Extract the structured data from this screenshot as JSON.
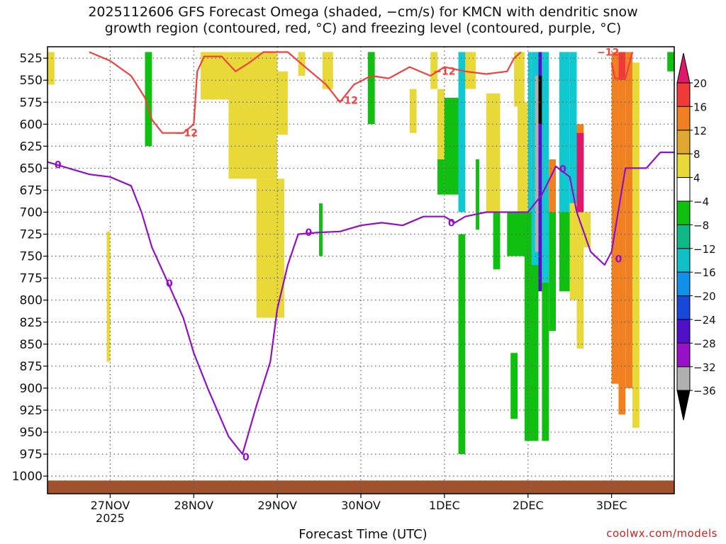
{
  "header": {
    "title_line1": "2025112606 GFS Forecast Omega (shaded, −cm/s) for KMCN with dendritic snow",
    "title_line2": "growth region (contoured, red, °C) and freezing level (contoured, purple, °C)"
  },
  "footer": {
    "xlabel": "Forecast Time (UTC)",
    "credit": "coolwx.com/models"
  },
  "colors": {
    "dgz_contour": "#f04040",
    "freezing_contour": "#9010c8",
    "terrain": "#a0522d",
    "grid": "#606060"
  },
  "chart_data": {
    "type": "heatmap",
    "variable": "Omega (shaded, −cm/s)",
    "y_axis": {
      "unit": "hPa",
      "reversed": true,
      "ticks": [
        525,
        550,
        575,
        600,
        625,
        650,
        675,
        700,
        725,
        750,
        775,
        800,
        825,
        850,
        875,
        900,
        925,
        950,
        975,
        1000
      ],
      "range": [
        512,
        1020
      ]
    },
    "x_axis": {
      "range": [
        "2025-11-26 06Z",
        "2025-12-03 18Z"
      ],
      "ticks": [
        {
          "time": "2025-11-27 00Z",
          "label": "27NOV",
          "sub": "2025"
        },
        {
          "time": "2025-11-28 00Z",
          "label": "28NOV",
          "sub": ""
        },
        {
          "time": "2025-11-29 00Z",
          "label": "29NOV",
          "sub": ""
        },
        {
          "time": "2025-11-30 00Z",
          "label": "30NOV",
          "sub": ""
        },
        {
          "time": "2025-12-01 00Z",
          "label": "1DEC",
          "sub": ""
        },
        {
          "time": "2025-12-02 00Z",
          "label": "2DEC",
          "sub": ""
        },
        {
          "time": "2025-12-03 00Z",
          "label": "3DEC",
          "sub": ""
        }
      ]
    },
    "grid": true,
    "colorbar": {
      "levels": [
        20,
        16,
        12,
        8,
        4,
        -4,
        -8,
        -12,
        -16,
        -20,
        -24,
        -28,
        -32,
        -36
      ],
      "labels": [
        "20",
        "16",
        "12",
        "8",
        "4",
        "−4",
        "−8",
        "−12",
        "−16",
        "−20",
        "−24",
        "−28",
        "−32",
        "−36"
      ],
      "colors": [
        "#e0186a",
        "#f03a3a",
        "#f08020",
        "#e0a830",
        "#e8d838",
        "#ffffff",
        "#10c010",
        "#10b888",
        "#10c0c8",
        "#1090e8",
        "#1848d8",
        "#5010c8",
        "#9810c8",
        "#b0b0b0",
        "#000000"
      ]
    },
    "shaded_regions": [
      {
        "t": [
          "2025-11-26 06Z",
          "2025-11-26 08Z"
        ],
        "p": [
          518,
          555
        ],
        "color": "#e8d838"
      },
      {
        "t": [
          "2025-11-26 23Z",
          "2025-11-27 00Z"
        ],
        "p": [
          722,
          870
        ],
        "color": "#e8d838"
      },
      {
        "t": [
          "2025-11-27 10Z",
          "2025-11-27 12Z"
        ],
        "p": [
          518,
          625
        ],
        "color": "#10c010"
      },
      {
        "t": [
          "2025-11-28 02Z",
          "2025-11-28 10Z"
        ],
        "p": [
          518,
          572
        ],
        "color": "#e8d838"
      },
      {
        "t": [
          "2025-11-28 10Z",
          "2025-11-29 00Z"
        ],
        "p": [
          518,
          662
        ],
        "color": "#e8d838"
      },
      {
        "t": [
          "2025-11-29 00Z",
          "2025-11-29 03Z"
        ],
        "p": [
          540,
          612
        ],
        "color": "#e8d838"
      },
      {
        "t": [
          "2025-11-28 18Z",
          "2025-11-29 02Z"
        ],
        "p": [
          662,
          820
        ],
        "color": "#e8d838"
      },
      {
        "t": [
          "2025-11-29 06Z",
          "2025-11-29 08Z"
        ],
        "p": [
          518,
          545
        ],
        "color": "#e8d838"
      },
      {
        "t": [
          "2025-11-29 13Z",
          "2025-11-29 16Z"
        ],
        "p": [
          518,
          560
        ],
        "color": "#e8d838"
      },
      {
        "t": [
          "2025-11-29 12Z",
          "2025-11-29 13Z"
        ],
        "p": [
          690,
          750
        ],
        "color": "#10c010"
      },
      {
        "t": [
          "2025-11-30 02Z",
          "2025-11-30 04Z"
        ],
        "p": [
          518,
          600
        ],
        "color": "#10c010"
      },
      {
        "t": [
          "2025-11-30 14Z",
          "2025-11-30 16Z"
        ],
        "p": [
          560,
          610
        ],
        "color": "#e8d838"
      },
      {
        "t": [
          "2025-11-30 20Z",
          "2025-11-30 22Z"
        ],
        "p": [
          518,
          560
        ],
        "color": "#e8d838"
      },
      {
        "t": [
          "2025-11-30 22Z",
          "2025-12-01 00Z"
        ],
        "p": [
          565,
          680
        ],
        "color": "#10c010"
      },
      {
        "t": [
          "2025-11-30 22Z",
          "2025-12-01 00Z"
        ],
        "p": [
          560,
          640
        ],
        "color": "#e8d838"
      },
      {
        "t": [
          "2025-12-01 00Z",
          "2025-12-01 04Z"
        ],
        "p": [
          570,
          680
        ],
        "color": "#10c010"
      },
      {
        "t": [
          "2025-12-01 04Z",
          "2025-12-01 06Z"
        ],
        "p": [
          518,
          700
        ],
        "color": "#10c8d0"
      },
      {
        "t": [
          "2025-12-01 06Z",
          "2025-12-01 09Z"
        ],
        "p": [
          518,
          560
        ],
        "color": "#e8d838"
      },
      {
        "t": [
          "2025-12-01 09Z",
          "2025-12-01 10Z"
        ],
        "p": [
          640,
          720
        ],
        "color": "#10c010"
      },
      {
        "t": [
          "2025-12-01 04Z",
          "2025-12-01 06Z"
        ],
        "p": [
          725,
          975
        ],
        "color": "#10c010"
      },
      {
        "t": [
          "2025-12-01 12Z",
          "2025-12-01 16Z"
        ],
        "p": [
          565,
          700
        ],
        "color": "#e8d838"
      },
      {
        "t": [
          "2025-12-01 14Z",
          "2025-12-01 16Z"
        ],
        "p": [
          700,
          765
        ],
        "color": "#10c010"
      },
      {
        "t": [
          "2025-12-01 18Z",
          "2025-12-02 00Z"
        ],
        "p": [
          700,
          750
        ],
        "color": "#10c010"
      },
      {
        "t": [
          "2025-12-01 19Z",
          "2025-12-01 21Z"
        ],
        "p": [
          860,
          935
        ],
        "color": "#10c010"
      },
      {
        "t": [
          "2025-12-01 20Z",
          "2025-12-01 23Z"
        ],
        "p": [
          518,
          580
        ],
        "color": "#e8d838"
      },
      {
        "t": [
          "2025-12-01 21Z",
          "2025-12-02 00Z"
        ],
        "p": [
          575,
          700
        ],
        "color": "#e8d838"
      },
      {
        "t": [
          "2025-12-01 23Z",
          "2025-12-02 03Z"
        ],
        "p": [
          700,
          960
        ],
        "color": "#10c010"
      },
      {
        "t": [
          "2025-12-02 00Z",
          "2025-12-02 01Z"
        ],
        "p": [
          518,
          700
        ],
        "color": "#10c8d0"
      },
      {
        "t": [
          "2025-12-02 01Z",
          "2025-12-02 03Z"
        ],
        "p": [
          518,
          760
        ],
        "color": "#10c8d0"
      },
      {
        "t": [
          "2025-12-02 03Z",
          "2025-12-02 04Z"
        ],
        "p": [
          518,
          790
        ],
        "color": "#5010c8"
      },
      {
        "t": [
          "2025-12-02 03Z",
          "2025-12-02 04Z"
        ],
        "p": [
          545,
          600
        ],
        "color": "#000000"
      },
      {
        "t": [
          "2025-12-02 02Z",
          "2025-12-02 03Z"
        ],
        "p": [
          545,
          700
        ],
        "color": "#b0b0b0"
      },
      {
        "t": [
          "2025-12-02 02Z",
          "2025-12-02 03Z"
        ],
        "p": [
          700,
          745
        ],
        "color": "#b0b0b0"
      },
      {
        "t": [
          "2025-12-02 04Z",
          "2025-12-02 06Z"
        ],
        "p": [
          518,
          780
        ],
        "color": "#10c8d0"
      },
      {
        "t": [
          "2025-12-02 04Z",
          "2025-12-02 06Z"
        ],
        "p": [
          780,
          960
        ],
        "color": "#10c010"
      },
      {
        "t": [
          "2025-12-02 06Z",
          "2025-12-02 08Z"
        ],
        "p": [
          640,
          700
        ],
        "color": "#f08020"
      },
      {
        "t": [
          "2025-12-02 06Z",
          "2025-12-02 08Z"
        ],
        "p": [
          700,
          835
        ],
        "color": "#10c010"
      },
      {
        "t": [
          "2025-12-02 09Z",
          "2025-12-02 12Z"
        ],
        "p": [
          518,
          700
        ],
        "color": "#10c8d0"
      },
      {
        "t": [
          "2025-12-02 09Z",
          "2025-12-02 12Z"
        ],
        "p": [
          700,
          790
        ],
        "color": "#10c010"
      },
      {
        "t": [
          "2025-12-02 12Z",
          "2025-12-02 14Z"
        ],
        "p": [
          518,
          690
        ],
        "color": "#10c8d0"
      },
      {
        "t": [
          "2025-12-02 12Z",
          "2025-12-02 14Z"
        ],
        "p": [
          690,
          800
        ],
        "color": "#e8d838"
      },
      {
        "t": [
          "2025-12-02 14Z",
          "2025-12-02 16Z"
        ],
        "p": [
          600,
          655
        ],
        "color": "#f08020"
      },
      {
        "t": [
          "2025-12-02 14Z",
          "2025-12-02 16Z"
        ],
        "p": [
          610,
          700
        ],
        "color": "#e0186a"
      },
      {
        "t": [
          "2025-12-02 14Z",
          "2025-12-02 16Z"
        ],
        "p": [
          700,
          855
        ],
        "color": "#e8d838"
      },
      {
        "t": [
          "2025-12-02 16Z",
          "2025-12-02 18Z"
        ],
        "p": [
          700,
          740
        ],
        "color": "#e8d838"
      },
      {
        "t": [
          "2025-12-03 00Z",
          "2025-12-03 02Z"
        ],
        "p": [
          518,
          895
        ],
        "color": "#f08020"
      },
      {
        "t": [
          "2025-12-03 02Z",
          "2025-12-03 04Z"
        ],
        "p": [
          518,
          550
        ],
        "color": "#f03a3a"
      },
      {
        "t": [
          "2025-12-03 02Z",
          "2025-12-03 04Z"
        ],
        "p": [
          550,
          930
        ],
        "color": "#f08020"
      },
      {
        "t": [
          "2025-12-03 04Z",
          "2025-12-03 06Z"
        ],
        "p": [
          518,
          900
        ],
        "color": "#f08020"
      },
      {
        "t": [
          "2025-12-03 06Z",
          "2025-12-03 08Z"
        ],
        "p": [
          530,
          945
        ],
        "color": "#e8d838"
      },
      {
        "t": [
          "2025-12-03 16Z",
          "2025-12-03 18Z"
        ],
        "p": [
          518,
          540
        ],
        "color": "#10c010"
      }
    ],
    "dgz_contour_label": "−12",
    "dgz_contour_points": [
      [
        "2025-11-26 18Z",
        518
      ],
      [
        "2025-11-27 00Z",
        528
      ],
      [
        "2025-11-27 06Z",
        545
      ],
      [
        "2025-11-27 10Z",
        570
      ],
      [
        "2025-11-27 12Z",
        595
      ],
      [
        "2025-11-27 15Z",
        610
      ],
      [
        "2025-11-27 21Z",
        610
      ],
      [
        "2025-11-28 00Z",
        600
      ],
      [
        "2025-11-28 01Z",
        540
      ],
      [
        "2025-11-28 03Z",
        523
      ],
      [
        "2025-11-28 08Z",
        523
      ],
      [
        "2025-11-28 12Z",
        540
      ],
      [
        "2025-11-28 16Z",
        530
      ],
      [
        "2025-11-28 20Z",
        518
      ],
      [
        "2025-11-29 03Z",
        518
      ],
      [
        "2025-11-29 08Z",
        535
      ],
      [
        "2025-11-29 14Z",
        555
      ],
      [
        "2025-11-29 18Z",
        575
      ],
      [
        "2025-11-29 22Z",
        555
      ],
      [
        "2025-11-30 03Z",
        545
      ],
      [
        "2025-11-30 08Z",
        548
      ],
      [
        "2025-11-30 14Z",
        535
      ],
      [
        "2025-11-30 20Z",
        545
      ],
      [
        "2025-12-01 00Z",
        535
      ],
      [
        "2025-12-01 06Z",
        540
      ],
      [
        "2025-12-01 12Z",
        543
      ],
      [
        "2025-12-01 18Z",
        540
      ],
      [
        "2025-12-01 20Z",
        525
      ],
      [
        "2025-12-01 22Z",
        518
      ]
    ],
    "dgz_contour2_points": [
      [
        "2025-12-03 00Z",
        530
      ],
      [
        "2025-12-03 01Z",
        548
      ],
      [
        "2025-12-03 04Z",
        548
      ],
      [
        "2025-12-03 06Z",
        518
      ]
    ],
    "freezing_contour_label": "0",
    "freezing_contour_points": [
      [
        "2025-11-26 06Z",
        643
      ],
      [
        "2025-11-26 12Z",
        650
      ],
      [
        "2025-11-26 18Z",
        657
      ],
      [
        "2025-11-27 00Z",
        660
      ],
      [
        "2025-11-27 06Z",
        670
      ],
      [
        "2025-11-27 09Z",
        700
      ],
      [
        "2025-11-27 12Z",
        740
      ],
      [
        "2025-11-27 16Z",
        775
      ],
      [
        "2025-11-27 21Z",
        820
      ],
      [
        "2025-11-28 00Z",
        860
      ],
      [
        "2025-11-28 04Z",
        900
      ],
      [
        "2025-11-28 10Z",
        955
      ],
      [
        "2025-11-28 14Z",
        975
      ],
      [
        "2025-11-28 18Z",
        920
      ],
      [
        "2025-11-28 22Z",
        870
      ],
      [
        "2025-11-29 00Z",
        810
      ],
      [
        "2025-11-29 03Z",
        760
      ],
      [
        "2025-11-29 06Z",
        725
      ],
      [
        "2025-11-29 12Z",
        723
      ],
      [
        "2025-11-29 18Z",
        722
      ],
      [
        "2025-11-30 00Z",
        715
      ],
      [
        "2025-11-30 06Z",
        712
      ],
      [
        "2025-11-30 12Z",
        715
      ],
      [
        "2025-11-30 18Z",
        705
      ],
      [
        "2025-12-01 00Z",
        705
      ],
      [
        "2025-12-01 03Z",
        712
      ],
      [
        "2025-12-01 06Z",
        705
      ],
      [
        "2025-12-01 12Z",
        700
      ],
      [
        "2025-12-01 18Z",
        700
      ],
      [
        "2025-12-02 00Z",
        700
      ],
      [
        "2025-12-02 04Z",
        680
      ],
      [
        "2025-12-02 08Z",
        648
      ],
      [
        "2025-12-02 12Z",
        660
      ],
      [
        "2025-12-02 14Z",
        700
      ],
      [
        "2025-12-02 18Z",
        745
      ],
      [
        "2025-12-02 22Z",
        760
      ],
      [
        "2025-12-03 00Z",
        745
      ],
      [
        "2025-12-03 04Z",
        650
      ],
      [
        "2025-12-03 10Z",
        650
      ],
      [
        "2025-12-03 14Z",
        632
      ],
      [
        "2025-12-03 18Z",
        632
      ]
    ],
    "terrain_pressure_hPa": 1005
  }
}
